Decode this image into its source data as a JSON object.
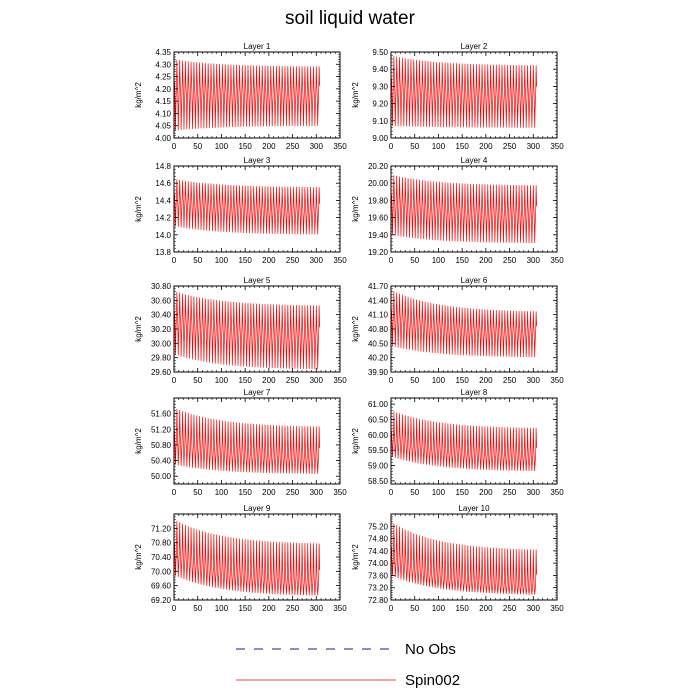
{
  "title": "soil liquid water",
  "chart_data": {
    "type": "line",
    "title": "soil liquid water",
    "legend": {
      "placement": "bottom",
      "entries": [
        {
          "name": "No Obs",
          "style": "dashed",
          "color": "#1a1a8c"
        },
        {
          "name": "Spin002",
          "style": "solid",
          "color": "#ff0000"
        }
      ]
    },
    "xlim": [
      0,
      350
    ],
    "xticks": [
      0,
      50,
      100,
      150,
      200,
      250,
      300,
      350
    ],
    "x_end": 307,
    "panels": [
      {
        "title": "Layer 1",
        "ylabel": "kg/m^2",
        "ylim": [
          4.0,
          4.35
        ],
        "yticks": [
          "4.00",
          "4.05",
          "4.10",
          "4.15",
          "4.20",
          "4.25",
          "4.30",
          "4.35"
        ],
        "series": [
          {
            "name": "Spin002",
            "center_start": 4.18,
            "center_end": 4.17,
            "high_start": 4.32,
            "high_end": 4.29,
            "low_start": 4.03,
            "low_end": 4.05
          }
        ]
      },
      {
        "title": "Layer 2",
        "ylabel": "kg/m^2",
        "ylim": [
          9.0,
          9.5
        ],
        "yticks": [
          "9.00",
          "9.10",
          "9.20",
          "9.30",
          "9.40",
          "9.50"
        ],
        "series": [
          {
            "name": "Spin002",
            "center_start": 9.28,
            "center_end": 9.23,
            "high_start": 9.48,
            "high_end": 9.42,
            "low_start": 9.07,
            "low_end": 9.06
          }
        ]
      },
      {
        "title": "Layer 3",
        "ylabel": "kg/m^2",
        "ylim": [
          13.8,
          14.8
        ],
        "yticks": [
          "13.8",
          "14.0",
          "14.2",
          "14.4",
          "14.6",
          "14.8"
        ],
        "series": [
          {
            "name": "Spin002",
            "center_start": 14.38,
            "center_end": 14.25,
            "high_start": 14.65,
            "high_end": 14.55,
            "low_start": 14.1,
            "low_end": 14.0
          }
        ]
      },
      {
        "title": "Layer 4",
        "ylabel": "kg/m^2",
        "ylim": [
          19.2,
          20.2
        ],
        "yticks": [
          "19.20",
          "19.40",
          "19.60",
          "19.80",
          "20.00",
          "20.20"
        ],
        "series": [
          {
            "name": "Spin002",
            "center_start": 19.75,
            "center_end": 19.6,
            "high_start": 20.1,
            "high_end": 19.97,
            "low_start": 19.4,
            "low_end": 19.3
          }
        ]
      },
      {
        "title": "Layer 5",
        "ylabel": "kg/m^2",
        "ylim": [
          29.6,
          30.8
        ],
        "yticks": [
          "29.60",
          "29.80",
          "30.00",
          "30.20",
          "30.40",
          "30.60",
          "30.80"
        ],
        "series": [
          {
            "name": "Spin002",
            "center_start": 30.3,
            "center_end": 30.05,
            "high_start": 30.73,
            "high_end": 30.52,
            "low_start": 29.85,
            "low_end": 29.63
          }
        ]
      },
      {
        "title": "Layer 6",
        "ylabel": "kg/m^2",
        "ylim": [
          39.9,
          41.7
        ],
        "yticks": [
          "39.90",
          "40.20",
          "40.50",
          "40.80",
          "41.10",
          "41.40",
          "41.70"
        ],
        "series": [
          {
            "name": "Spin002",
            "center_start": 41.0,
            "center_end": 40.68,
            "high_start": 41.62,
            "high_end": 41.15,
            "low_start": 40.45,
            "low_end": 40.2
          }
        ]
      },
      {
        "title": "Layer 7",
        "ylabel": "kg/m^2",
        "ylim": [
          49.8,
          52.0
        ],
        "yticks": [
          "50.00",
          "50.40",
          "50.80",
          "51.20",
          "51.60"
        ],
        "series": [
          {
            "name": "Spin002",
            "center_start": 50.85,
            "center_end": 50.4,
            "high_start": 51.75,
            "high_end": 51.25,
            "low_start": 50.3,
            "low_end": 50.05
          }
        ]
      },
      {
        "title": "Layer 8",
        "ylabel": "kg/m^2",
        "ylim": [
          58.4,
          61.2
        ],
        "yticks": [
          "58.50",
          "59.00",
          "59.50",
          "60.00",
          "60.50",
          "61.00"
        ],
        "series": [
          {
            "name": "Spin002",
            "center_start": 59.8,
            "center_end": 59.2,
            "high_start": 60.8,
            "high_end": 60.2,
            "low_start": 59.3,
            "low_end": 58.8
          }
        ]
      },
      {
        "title": "Layer 9",
        "ylabel": "kg/m^2",
        "ylim": [
          69.2,
          71.6
        ],
        "yticks": [
          "69.20",
          "69.60",
          "70.00",
          "70.40",
          "70.80",
          "71.20"
        ],
        "series": [
          {
            "name": "Spin002",
            "center_start": 70.45,
            "center_end": 69.6,
            "high_start": 71.45,
            "high_end": 70.75,
            "low_start": 69.9,
            "low_end": 69.3
          }
        ]
      },
      {
        "title": "Layer 10",
        "ylabel": "kg/m^2",
        "ylim": [
          72.8,
          75.6
        ],
        "yticks": [
          "72.80",
          "73.20",
          "73.60",
          "74.00",
          "74.40",
          "74.80",
          "75.20"
        ],
        "series": [
          {
            "name": "Spin002",
            "center_start": 74.1,
            "center_end": 73.15,
            "high_start": 75.35,
            "high_end": 74.4,
            "low_start": 73.6,
            "low_end": 72.95
          }
        ]
      }
    ]
  }
}
